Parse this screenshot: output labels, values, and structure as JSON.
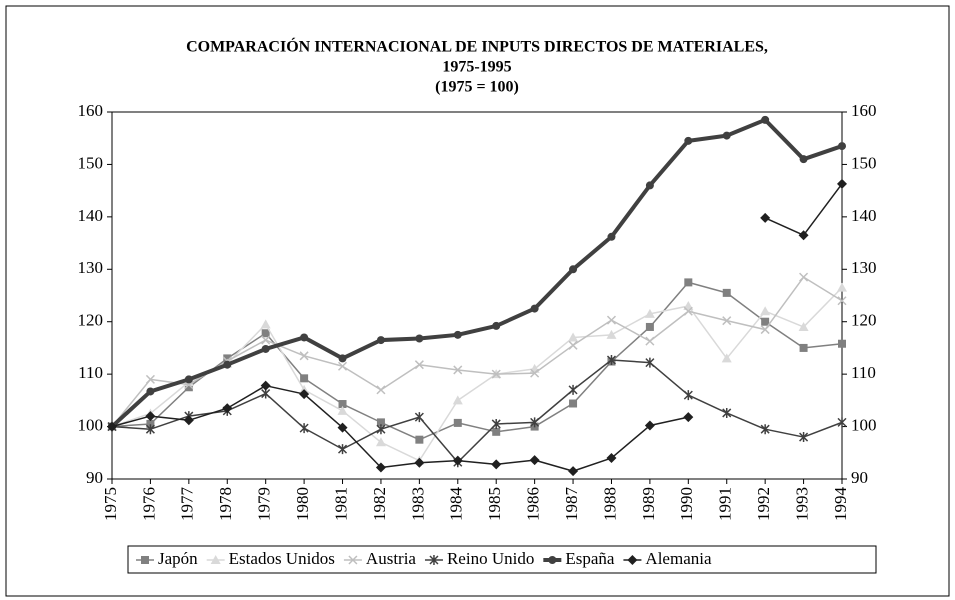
{
  "chart_data": {
    "type": "line",
    "title": "COMPARACIÓN INTERNACIONAL DE INPUTS DIRECTOS DE  MATERIALES,",
    "subtitle": "1975-1995",
    "annotation": "(1975 = 100)",
    "categories": [
      "1975",
      "1976",
      "1977",
      "1978",
      "1979",
      "1980",
      "1981",
      "1982",
      "1983",
      "1984",
      "1985",
      "1986",
      "1987",
      "1988",
      "1989",
      "1990",
      "1991",
      "1992",
      "1993",
      "1994"
    ],
    "ylim": [
      90,
      160
    ],
    "yticks": [
      90,
      100,
      110,
      120,
      130,
      140,
      150,
      160
    ],
    "y2lim": [
      90,
      160
    ],
    "y2ticks": [
      90,
      100,
      110,
      120,
      130,
      140,
      150,
      160
    ],
    "legend": "bottom",
    "series": [
      {
        "name": "Japón",
        "color": "#808080",
        "marker": "square",
        "values": [
          100,
          100.5,
          107.5,
          113,
          117.8,
          109.2,
          104.3,
          100.8,
          97.5,
          100.7,
          99,
          100,
          104.4,
          112.4,
          119,
          127.5,
          125.5,
          120,
          115,
          115.8
        ]
      },
      {
        "name": "Estados Unidos",
        "color": "#d9d9d9",
        "marker": "triangle",
        "values": [
          100,
          102.5,
          108.5,
          112,
          119.5,
          107,
          103,
          97,
          93.5,
          105,
          110,
          111,
          117,
          117.5,
          121.5,
          123,
          113,
          122,
          119,
          126.5
        ]
      },
      {
        "name": "Austria",
        "color": "#bfbfbf",
        "marker": "x",
        "values": [
          100,
          109,
          108,
          112.5,
          116.5,
          113.5,
          111.5,
          107,
          111.8,
          110.8,
          110,
          110.2,
          115.5,
          120.3,
          116.3,
          122,
          120.2,
          118.5,
          128.5,
          124
        ]
      },
      {
        "name": "Reino Unido",
        "color": "#404040",
        "marker": "star",
        "values": [
          100,
          99.5,
          102,
          103,
          106.3,
          99.7,
          95.7,
          99.5,
          101.8,
          93.2,
          100.5,
          100.8,
          107,
          112.7,
          112.2,
          106,
          102.6,
          99.5,
          98,
          100.8
        ]
      },
      {
        "name": "España",
        "color": "#404040",
        "marker": "circle",
        "width": 4,
        "values": [
          100,
          106.7,
          109,
          111.8,
          114.8,
          117,
          113,
          116.5,
          116.8,
          117.5,
          119.2,
          122.5,
          130,
          136.2,
          146,
          154.5,
          155.5,
          158.5,
          151,
          153.5
        ]
      },
      {
        "name": "Alemania",
        "color": "#202020",
        "marker": "diamond",
        "values": [
          100,
          102,
          101.2,
          103.5,
          107.8,
          106.2,
          99.8,
          92.2,
          93.1,
          93.5,
          92.8,
          93.6,
          91.5,
          94,
          100.2,
          101.8,
          null,
          139.8,
          136.5,
          146.3
        ]
      }
    ]
  }
}
